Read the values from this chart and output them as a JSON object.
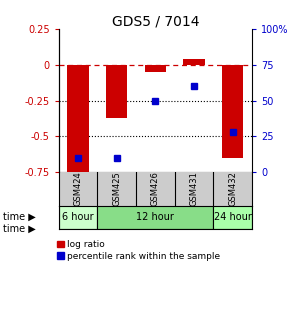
{
  "title": "GDS5 / 7014",
  "samples": [
    "GSM424",
    "GSM425",
    "GSM426",
    "GSM431",
    "GSM432"
  ],
  "log_ratio": [
    -0.78,
    -0.37,
    -0.05,
    0.04,
    -0.65
  ],
  "percentile_rank": [
    10,
    10,
    50,
    60,
    28
  ],
  "bar_color": "#cc0000",
  "square_color": "#0000cc",
  "ylim_left": [
    -0.75,
    0.25
  ],
  "ylim_right": [
    0,
    100
  ],
  "yticks_left": [
    0.25,
    0.0,
    -0.25,
    -0.5,
    -0.75
  ],
  "yticks_right": [
    100,
    75,
    50,
    25,
    0
  ],
  "ytick_labels_left": [
    "0.25",
    "0",
    "-0.25",
    "-0.5",
    "-0.75"
  ],
  "ytick_labels_right": [
    "100%",
    "75",
    "50",
    "25",
    "0"
  ],
  "hlines_dotted": [
    -0.25,
    -0.5
  ],
  "hline_dash": 0.0,
  "time_groups": [
    {
      "label": "6 hour",
      "cnt": 1,
      "color": "#ccffcc"
    },
    {
      "label": "12 hour",
      "cnt": 3,
      "color": "#88dd88"
    },
    {
      "label": "24 hour",
      "cnt": 1,
      "color": "#aaffaa"
    }
  ],
  "legend_items": [
    {
      "label": "log ratio",
      "color": "#cc0000"
    },
    {
      "label": "percentile rank within the sample",
      "color": "#0000cc"
    }
  ],
  "bar_width": 0.55,
  "gsm_row_color": "#cccccc",
  "plot_bg": "#ffffff"
}
